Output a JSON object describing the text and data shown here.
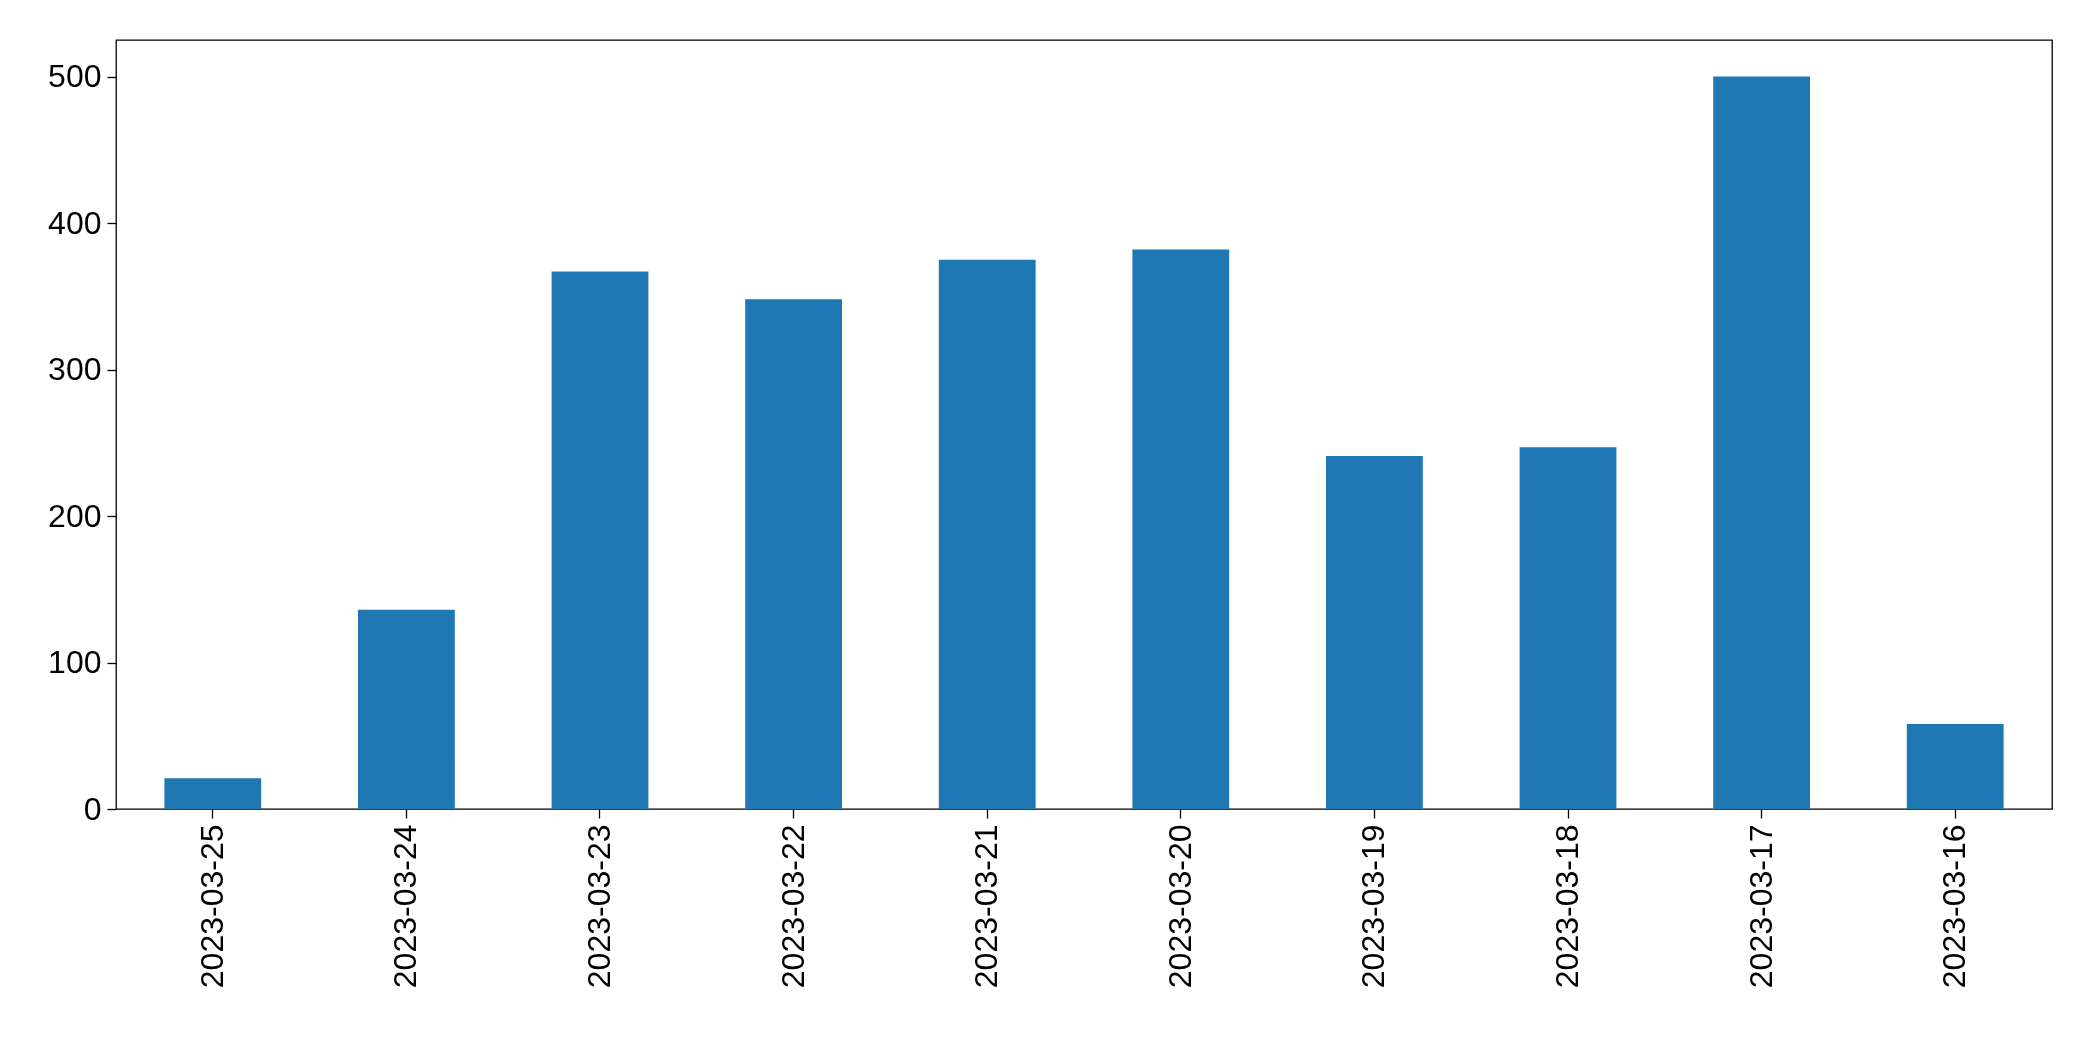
{
  "chart_data": {
    "type": "bar",
    "categories": [
      "2023-03-25",
      "2023-03-24",
      "2023-03-23",
      "2023-03-22",
      "2023-03-21",
      "2023-03-20",
      "2023-03-19",
      "2023-03-18",
      "2023-03-17",
      "2023-03-16"
    ],
    "values": [
      21,
      136,
      367,
      348,
      375,
      382,
      241,
      247,
      500,
      58
    ],
    "color": "#1f77b4",
    "ylim": [
      0,
      525
    ],
    "yticks": [
      0,
      100,
      200,
      300,
      400,
      500
    ],
    "grid": false
  }
}
